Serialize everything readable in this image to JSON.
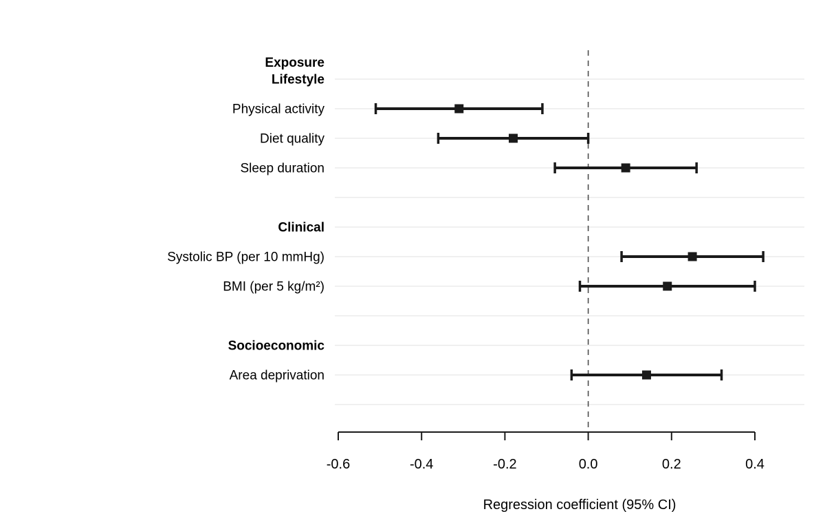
{
  "chart_data": {
    "type": "forest",
    "header": "Exposure",
    "xlabel": "Regression coefficient (95% CI)",
    "xlim": [
      -0.6,
      0.4
    ],
    "x_ticks": [
      {
        "value": -0.6,
        "label": "-0.6"
      },
      {
        "value": -0.4,
        "label": "-0.4"
      },
      {
        "value": -0.2,
        "label": "-0.2"
      },
      {
        "value": 0.0,
        "label": "0.0"
      },
      {
        "value": 0.2,
        "label": "0.2"
      },
      {
        "value": 0.4,
        "label": "0.4"
      }
    ],
    "reference_line": 0.0,
    "grid": true,
    "legend": null,
    "rows": [
      {
        "kind": "group",
        "label": "Lifestyle"
      },
      {
        "kind": "item",
        "label": "Physical activity",
        "estimate": -0.31,
        "ci_low": -0.51,
        "ci_high": -0.11
      },
      {
        "kind": "item",
        "label": "Diet quality",
        "estimate": -0.18,
        "ci_low": -0.36,
        "ci_high": 0.0
      },
      {
        "kind": "item",
        "label": "Sleep duration",
        "estimate": 0.09,
        "ci_low": -0.08,
        "ci_high": 0.26
      },
      {
        "kind": "spacer",
        "label": ""
      },
      {
        "kind": "group",
        "label": "Clinical"
      },
      {
        "kind": "item",
        "label": "Systolic BP (per 10 mmHg)",
        "estimate": 0.25,
        "ci_low": 0.08,
        "ci_high": 0.42
      },
      {
        "kind": "item",
        "label": "BMI (per 5 kg/m²)",
        "estimate": 0.19,
        "ci_low": -0.02,
        "ci_high": 0.4
      },
      {
        "kind": "spacer",
        "label": ""
      },
      {
        "kind": "group",
        "label": "Socioeconomic"
      },
      {
        "kind": "item",
        "label": "Area deprivation",
        "estimate": 0.14,
        "ci_low": -0.04,
        "ci_high": 0.32
      },
      {
        "kind": "spacer",
        "label": ""
      }
    ]
  },
  "colors": {
    "bar": "#1a1a1a",
    "marker": "#1a1a1a",
    "grid": "#ebebeb",
    "reference_line": "#4d4d4d",
    "axis": "#1a1a1a",
    "text": "#000000",
    "background": "#ffffff"
  }
}
